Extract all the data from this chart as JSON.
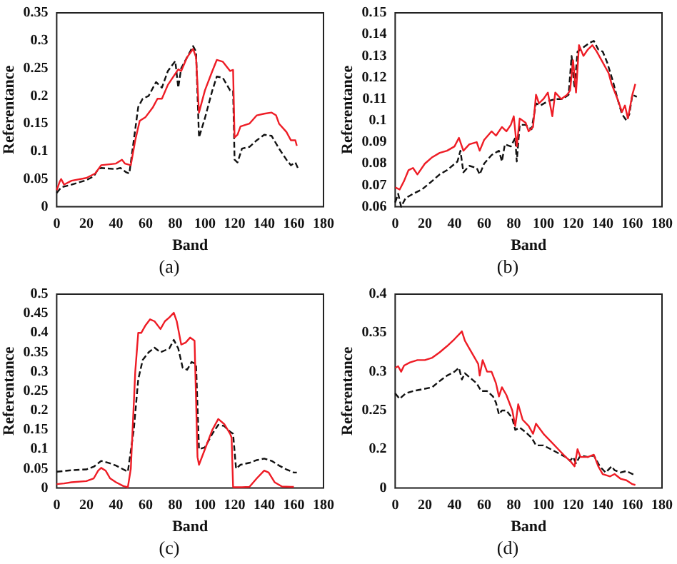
{
  "chart_data": [
    {
      "type": "line",
      "xlabel": "Band",
      "ylabel": "Referentance",
      "annotations": [
        "(a)"
      ],
      "xlim": [
        0,
        180
      ],
      "xticks": [
        0,
        20,
        40,
        60,
        80,
        100,
        120,
        140,
        160,
        180
      ],
      "ylim": [
        0,
        0.35
      ],
      "yticks": [
        0,
        0.05,
        0.1,
        0.15,
        0.2,
        0.25,
        0.3,
        0.35
      ],
      "grid": false,
      "legend": false,
      "marker": "none",
      "series": [
        {
          "color": "#ee1c25",
          "line_style": "solid",
          "x": [
            0,
            2,
            3,
            5,
            10,
            20,
            26,
            30,
            40,
            44,
            46,
            50,
            53,
            56,
            60,
            65,
            68,
            71,
            75,
            80,
            82,
            84,
            88,
            92,
            94,
            96,
            100,
            105,
            108,
            112,
            117,
            119,
            120,
            122,
            124,
            130,
            135,
            140,
            145,
            148,
            150,
            155,
            158,
            161,
            162
          ],
          "values": [
            0.03,
            0.045,
            0.05,
            0.04,
            0.047,
            0.052,
            0.06,
            0.075,
            0.078,
            0.085,
            0.078,
            0.075,
            0.12,
            0.155,
            0.162,
            0.18,
            0.195,
            0.195,
            0.22,
            0.24,
            0.248,
            0.245,
            0.27,
            0.285,
            0.27,
            0.17,
            0.21,
            0.245,
            0.265,
            0.262,
            0.245,
            0.247,
            0.125,
            0.13,
            0.145,
            0.15,
            0.165,
            0.168,
            0.17,
            0.165,
            0.15,
            0.135,
            0.12,
            0.12,
            0.11
          ]
        },
        {
          "color": "#111111",
          "line_style": "dashed",
          "x": [
            0,
            3,
            10,
            20,
            25,
            28,
            30,
            40,
            43,
            47,
            49,
            52,
            55,
            58,
            62,
            67,
            71,
            75,
            80,
            82,
            84,
            88,
            92,
            94,
            96,
            100,
            105,
            108,
            112,
            117,
            119,
            120,
            122,
            125,
            130,
            135,
            140,
            145,
            150,
            155,
            158,
            161,
            163
          ],
          "values": [
            0.025,
            0.035,
            0.04,
            0.048,
            0.055,
            0.068,
            0.07,
            0.068,
            0.07,
            0.062,
            0.06,
            0.12,
            0.18,
            0.195,
            0.2,
            0.225,
            0.215,
            0.245,
            0.263,
            0.215,
            0.25,
            0.27,
            0.29,
            0.28,
            0.125,
            0.16,
            0.21,
            0.235,
            0.233,
            0.21,
            0.21,
            0.085,
            0.08,
            0.105,
            0.108,
            0.12,
            0.13,
            0.128,
            0.105,
            0.085,
            0.075,
            0.08,
            0.068
          ]
        }
      ]
    },
    {
      "type": "line",
      "xlabel": "Band",
      "ylabel": "Referentance",
      "annotations": [
        "(b)"
      ],
      "xlim": [
        0,
        180
      ],
      "xticks": [
        0,
        20,
        40,
        60,
        80,
        100,
        120,
        140,
        160,
        180
      ],
      "ylim": [
        0.06,
        0.15
      ],
      "yticks": [
        0.06,
        0.07,
        0.08,
        0.09,
        0.1,
        0.11,
        0.12,
        0.13,
        0.14,
        0.15
      ],
      "grid": false,
      "legend": false,
      "marker": "none",
      "series": [
        {
          "color": "#ee1c25",
          "line_style": "solid",
          "x": [
            0,
            3,
            6,
            9,
            12,
            15,
            20,
            25,
            30,
            35,
            40,
            43,
            46,
            50,
            55,
            57,
            60,
            65,
            68,
            72,
            75,
            78,
            80,
            82,
            84,
            88,
            90,
            93,
            95,
            97,
            100,
            103,
            106,
            108,
            112,
            116,
            118,
            120,
            122,
            124,
            127,
            130,
            133,
            136,
            140,
            144,
            146,
            150,
            153,
            155,
            157,
            160,
            162
          ],
          "values": [
            0.069,
            0.068,
            0.072,
            0.077,
            0.078,
            0.075,
            0.08,
            0.083,
            0.085,
            0.086,
            0.088,
            0.092,
            0.086,
            0.089,
            0.09,
            0.086,
            0.091,
            0.095,
            0.093,
            0.097,
            0.095,
            0.098,
            0.102,
            0.088,
            0.101,
            0.099,
            0.095,
            0.097,
            0.112,
            0.108,
            0.11,
            0.113,
            0.102,
            0.113,
            0.11,
            0.112,
            0.114,
            0.128,
            0.113,
            0.135,
            0.13,
            0.133,
            0.135,
            0.132,
            0.127,
            0.122,
            0.117,
            0.11,
            0.104,
            0.107,
            0.101,
            0.112,
            0.117
          ]
        },
        {
          "color": "#111111",
          "line_style": "dashed",
          "x": [
            0,
            2,
            4,
            7,
            12,
            18,
            25,
            30,
            35,
            42,
            44,
            46,
            50,
            55,
            57,
            60,
            65,
            70,
            72,
            74,
            78,
            81,
            82,
            84,
            88,
            92,
            95,
            98,
            103,
            108,
            113,
            117,
            119,
            121,
            123,
            127,
            131,
            134,
            137,
            140,
            143,
            147,
            150,
            153,
            156,
            158,
            160,
            163
          ],
          "values": [
            0.062,
            0.066,
            0.06,
            0.064,
            0.066,
            0.068,
            0.072,
            0.075,
            0.077,
            0.081,
            0.086,
            0.076,
            0.079,
            0.078,
            0.075,
            0.08,
            0.084,
            0.086,
            0.081,
            0.089,
            0.088,
            0.092,
            0.081,
            0.098,
            0.098,
            0.096,
            0.108,
            0.107,
            0.109,
            0.11,
            0.11,
            0.112,
            0.13,
            0.115,
            0.132,
            0.134,
            0.136,
            0.137,
            0.133,
            0.132,
            0.127,
            0.118,
            0.11,
            0.103,
            0.1,
            0.103,
            0.112,
            0.111
          ]
        }
      ]
    },
    {
      "type": "line",
      "xlabel": "Band",
      "ylabel": "Referentance",
      "annotations": [
        "(c)"
      ],
      "xlim": [
        0,
        180
      ],
      "xticks": [
        0,
        20,
        40,
        60,
        80,
        100,
        120,
        140,
        160,
        180
      ],
      "ylim": [
        0,
        0.5
      ],
      "yticks": [
        0,
        0.05,
        0.1,
        0.15,
        0.2,
        0.25,
        0.3,
        0.35,
        0.4,
        0.45,
        0.5
      ],
      "grid": false,
      "legend": false,
      "marker": "none",
      "series": [
        {
          "color": "#ee1c25",
          "line_style": "solid",
          "x": [
            0,
            5,
            10,
            20,
            25,
            28,
            30,
            33,
            36,
            40,
            45,
            48,
            50,
            53,
            55,
            57,
            60,
            63,
            66,
            70,
            73,
            76,
            79,
            81,
            84,
            87,
            90,
            93,
            95,
            96,
            100,
            105,
            109,
            113,
            117,
            118,
            119,
            125,
            130,
            135,
            140,
            143,
            147,
            152,
            158,
            160
          ],
          "values": [
            0.01,
            0.012,
            0.015,
            0.018,
            0.025,
            0.045,
            0.052,
            0.045,
            0.025,
            0.015,
            0.005,
            0.002,
            0.05,
            0.3,
            0.4,
            0.4,
            0.42,
            0.435,
            0.43,
            0.41,
            0.43,
            0.44,
            0.452,
            0.43,
            0.37,
            0.375,
            0.388,
            0.38,
            0.08,
            0.06,
            0.1,
            0.15,
            0.178,
            0.165,
            0.14,
            0.13,
            0.002,
            0.002,
            0.003,
            0.025,
            0.045,
            0.04,
            0.015,
            0.004,
            0.003,
            0.003
          ]
        },
        {
          "color": "#111111",
          "line_style": "dashed",
          "x": [
            0,
            5,
            10,
            20,
            25,
            30,
            35,
            40,
            45,
            48,
            52,
            55,
            58,
            62,
            66,
            70,
            73,
            76,
            79,
            82,
            85,
            88,
            91,
            94,
            96,
            100,
            105,
            109,
            113,
            117,
            119,
            121,
            124,
            130,
            135,
            140,
            145,
            150,
            155,
            160,
            162
          ],
          "values": [
            0.042,
            0.044,
            0.046,
            0.048,
            0.055,
            0.07,
            0.065,
            0.058,
            0.048,
            0.042,
            0.15,
            0.28,
            0.33,
            0.35,
            0.362,
            0.35,
            0.355,
            0.36,
            0.382,
            0.36,
            0.31,
            0.305,
            0.325,
            0.32,
            0.1,
            0.105,
            0.14,
            0.163,
            0.16,
            0.145,
            0.14,
            0.05,
            0.06,
            0.065,
            0.072,
            0.076,
            0.07,
            0.058,
            0.048,
            0.04,
            0.04
          ]
        }
      ]
    },
    {
      "type": "line",
      "xlabel": "Band",
      "ylabel": "Referentance",
      "annotations": [
        "(d)"
      ],
      "xlim": [
        0,
        180
      ],
      "xticks": [
        0,
        20,
        40,
        60,
        80,
        100,
        120,
        140,
        160,
        180
      ],
      "ylim": [
        0.15,
        0.4
      ],
      "yticks": [
        {
          "value": 0.15,
          "label": "0"
        },
        0.2,
        0.25,
        0.3,
        0.35,
        0.4
      ],
      "grid": false,
      "legend": false,
      "marker": "none",
      "series": [
        {
          "color": "#ee1c25",
          "line_style": "solid",
          "x": [
            0,
            2,
            4,
            6,
            10,
            15,
            20,
            25,
            30,
            35,
            40,
            44,
            45,
            47,
            50,
            53,
            56,
            57,
            59,
            62,
            65,
            68,
            70,
            72,
            75,
            79,
            81,
            83,
            86,
            90,
            93,
            95,
            100,
            105,
            110,
            115,
            118,
            121,
            123,
            125,
            130,
            134,
            137,
            140,
            145,
            148,
            152,
            156,
            160,
            162
          ],
          "values": [
            0.305,
            0.307,
            0.3,
            0.308,
            0.312,
            0.315,
            0.315,
            0.318,
            0.325,
            0.333,
            0.342,
            0.35,
            0.352,
            0.34,
            0.33,
            0.32,
            0.31,
            0.295,
            0.315,
            0.3,
            0.3,
            0.285,
            0.268,
            0.28,
            0.27,
            0.25,
            0.23,
            0.258,
            0.238,
            0.23,
            0.22,
            0.233,
            0.22,
            0.21,
            0.2,
            0.19,
            0.185,
            0.178,
            0.2,
            0.19,
            0.19,
            0.193,
            0.178,
            0.168,
            0.165,
            0.168,
            0.162,
            0.16,
            0.155,
            0.154
          ]
        },
        {
          "color": "#111111",
          "line_style": "dashed",
          "x": [
            0,
            3,
            7,
            12,
            20,
            25,
            30,
            35,
            40,
            43,
            45,
            47,
            50,
            55,
            58,
            62,
            66,
            68,
            70,
            72,
            75,
            79,
            81,
            84,
            88,
            92,
            95,
            100,
            105,
            110,
            115,
            118,
            120,
            122,
            125,
            130,
            134,
            138,
            142,
            146,
            148,
            152,
            156,
            160,
            162
          ],
          "values": [
            0.272,
            0.265,
            0.272,
            0.275,
            0.278,
            0.28,
            0.288,
            0.295,
            0.3,
            0.305,
            0.29,
            0.298,
            0.293,
            0.285,
            0.275,
            0.275,
            0.268,
            0.26,
            0.245,
            0.25,
            0.25,
            0.24,
            0.225,
            0.228,
            0.222,
            0.215,
            0.205,
            0.205,
            0.2,
            0.195,
            0.19,
            0.185,
            0.19,
            0.182,
            0.192,
            0.19,
            0.192,
            0.178,
            0.17,
            0.178,
            0.173,
            0.17,
            0.172,
            0.168,
            0.168
          ]
        }
      ]
    }
  ]
}
